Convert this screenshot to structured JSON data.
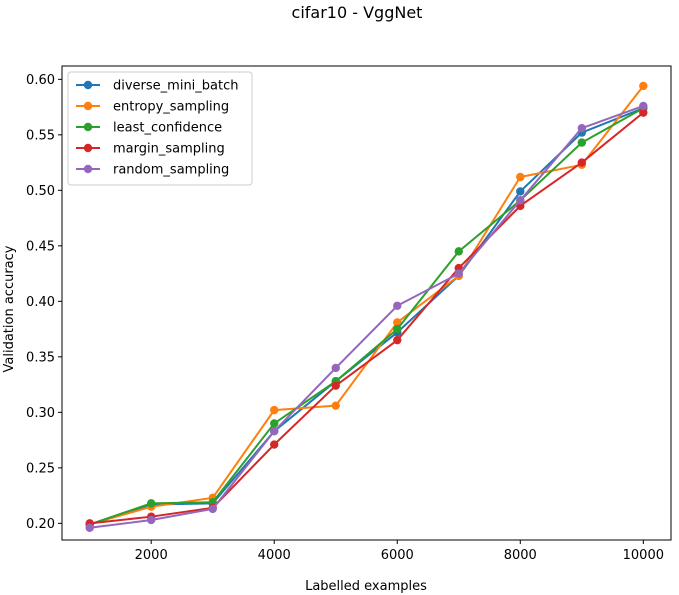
{
  "chart_data": {
    "type": "line",
    "title": "cifar10 - VggNet",
    "xlabel": "Labelled examples",
    "ylabel": "Validation accuracy",
    "xlim": [
      550,
      10450
    ],
    "ylim": [
      0.185,
      0.612
    ],
    "x_ticks": [
      2000,
      4000,
      6000,
      8000,
      10000
    ],
    "x_tick_labels": [
      "2000",
      "4000",
      "6000",
      "8000",
      "10000"
    ],
    "y_ticks": [
      0.2,
      0.25,
      0.3,
      0.35,
      0.4,
      0.45,
      0.5,
      0.55,
      0.6
    ],
    "y_tick_labels": [
      "0.20",
      "0.25",
      "0.30",
      "0.35",
      "0.40",
      "0.45",
      "0.50",
      "0.55",
      "0.60"
    ],
    "grid": false,
    "legend_position": "top-left",
    "x": [
      1000,
      2000,
      3000,
      4000,
      5000,
      6000,
      7000,
      8000,
      9000,
      10000
    ],
    "series": [
      {
        "name": "diverse_mini_batch",
        "color": "#1f77b4",
        "values": [
          0.199,
          0.217,
          0.218,
          0.283,
          0.328,
          0.372,
          0.423,
          0.499,
          0.552,
          0.574
        ]
      },
      {
        "name": "entropy_sampling",
        "color": "#ff7f0e",
        "values": [
          0.199,
          0.215,
          0.223,
          0.302,
          0.306,
          0.381,
          0.423,
          0.512,
          0.523,
          0.594
        ]
      },
      {
        "name": "least_confidence",
        "color": "#2ca02c",
        "values": [
          0.199,
          0.218,
          0.219,
          0.29,
          0.328,
          0.375,
          0.445,
          0.491,
          0.543,
          0.574
        ]
      },
      {
        "name": "margin_sampling",
        "color": "#d62728",
        "values": [
          0.2,
          0.206,
          0.214,
          0.271,
          0.324,
          0.365,
          0.43,
          0.486,
          0.525,
          0.57
        ]
      },
      {
        "name": "random_sampling",
        "color": "#9467bd",
        "values": [
          0.196,
          0.203,
          0.213,
          0.283,
          0.34,
          0.396,
          0.425,
          0.491,
          0.556,
          0.576
        ]
      }
    ]
  }
}
